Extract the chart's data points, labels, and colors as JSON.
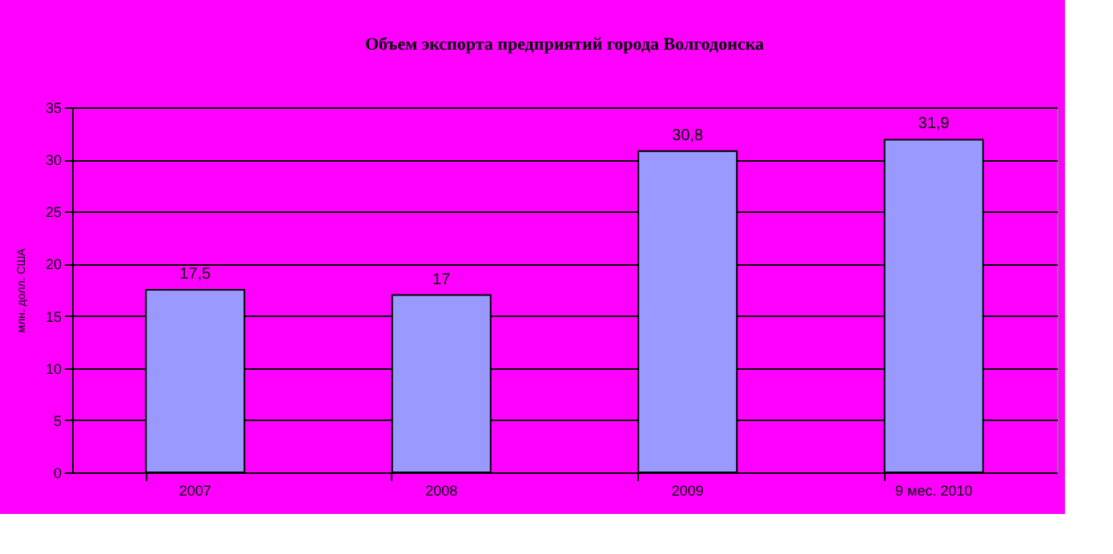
{
  "chart_data": {
    "type": "bar",
    "title": "Объем экспорта предприятий города Волгодонска",
    "ylabel": "млн. долл. США",
    "categories": [
      "2007",
      "2008",
      "2009",
      "9 мес. 2010"
    ],
    "values": [
      17.5,
      17,
      30.8,
      31.9
    ],
    "value_labels": [
      "17,5",
      "17",
      "30,8",
      "31,9"
    ],
    "color": "#9999ff",
    "ylim": [
      0,
      35
    ],
    "yticks": [
      0,
      5,
      10,
      15,
      20,
      25,
      30,
      35
    ],
    "grid": "y"
  }
}
